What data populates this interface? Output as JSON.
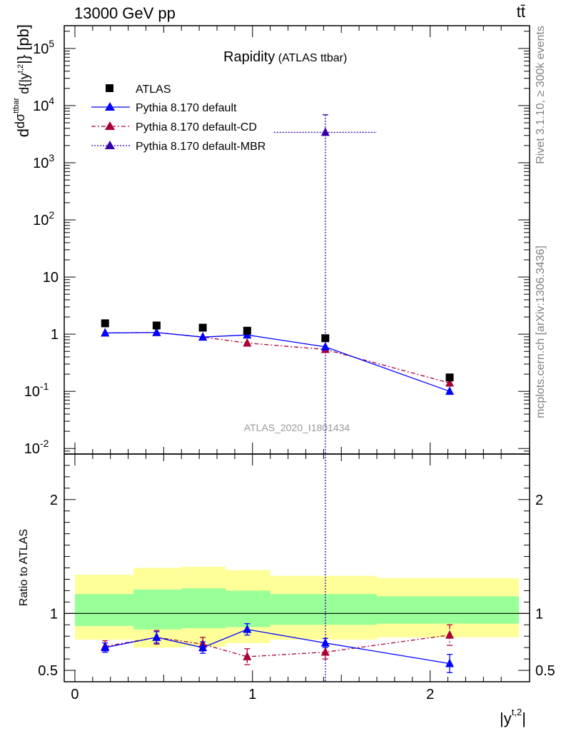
{
  "header": {
    "energy": "13000 GeV pp",
    "process": "tt̄"
  },
  "side": {
    "rivet": "Rivet 3.1.10, ≥ 300k events",
    "mcplots": "mcplots.cern.ch [arXiv:1306.3436]"
  },
  "watermark": "ATLAS_2020_I1801434",
  "colors": {
    "atlas": "#000000",
    "default": "#0000ff",
    "cd": "#aa0033",
    "mbr": "#3300aa",
    "band_outer": "#ffff99",
    "band_inner": "#99ff99"
  },
  "chart_data": [
    {
      "type": "scatter",
      "panel": "main",
      "title": "Rapidity",
      "subtitle": "(ATLAS ttbar)",
      "ylabel": "dσ^ttbar / d{|y^t,2|} [pb]",
      "yscale": "log",
      "ylim": [
        0.008,
        250000
      ],
      "xlim": [
        -0.06,
        2.56
      ],
      "ytick_labels": [
        "10^-2",
        "10^-1",
        "1",
        "10",
        "10^2",
        "10^3",
        "10^4",
        "10^5"
      ],
      "legend": [
        "ATLAS",
        "Pythia 8.170 default",
        "Pythia 8.170 default-CD",
        "Pythia 8.170 default-MBR"
      ],
      "series": [
        {
          "name": "ATLAS",
          "marker": "square",
          "x": [
            0.17,
            0.46,
            0.72,
            0.97,
            1.41,
            2.11
          ],
          "y": [
            1.55,
            1.42,
            1.3,
            1.15,
            0.85,
            0.175
          ]
        },
        {
          "name": "Pythia 8.170 default",
          "marker": "triangle",
          "line": "solid",
          "x": [
            0.17,
            0.46,
            0.72,
            0.97,
            1.41,
            2.11
          ],
          "y": [
            1.05,
            1.07,
            0.89,
            0.97,
            0.6,
            0.1
          ]
        },
        {
          "name": "Pythia 8.170 default-CD",
          "marker": "triangle",
          "line": "dashdot",
          "x": [
            0.17,
            0.46,
            0.72,
            0.97,
            1.41,
            2.11
          ],
          "y": [
            1.05,
            1.07,
            0.89,
            0.7,
            0.54,
            0.14
          ]
        },
        {
          "name": "Pythia 8.170 default-MBR",
          "marker": "triangle",
          "line": "dotted",
          "x": [
            1.41
          ],
          "y": [
            3400
          ],
          "xerr": [
            [
              1.12,
              1.7
            ]
          ],
          "yerr": [
            [
              0.005,
              6900
            ]
          ]
        }
      ]
    },
    {
      "type": "line",
      "panel": "ratio",
      "ylabel": "Ratio to ATLAS",
      "xlabel": "|y^t,2|",
      "ylim": [
        0.4,
        2.4
      ],
      "xlim": [
        -0.06,
        2.56
      ],
      "xtick_labels": [
        "0",
        "1",
        "2"
      ],
      "ytick_labels": [
        "0.5",
        "1",
        "2"
      ],
      "bands": {
        "edges": [
          0.0,
          0.33,
          0.6,
          0.85,
          1.1,
          1.7,
          2.5
        ],
        "outer_low": [
          0.77,
          0.7,
          0.71,
          0.74,
          0.77,
          0.79
        ],
        "outer_high": [
          1.34,
          1.4,
          1.41,
          1.38,
          1.33,
          1.31
        ],
        "inner_low": [
          0.89,
          0.86,
          0.87,
          0.88,
          0.9,
          0.91
        ],
        "inner_high": [
          1.17,
          1.21,
          1.22,
          1.2,
          1.17,
          1.15
        ]
      },
      "series": [
        {
          "name": "Pythia 8.170 default",
          "x": [
            0.17,
            0.46,
            0.72,
            0.97,
            1.41,
            2.11
          ],
          "y": [
            0.7,
            0.79,
            0.7,
            0.86,
            0.74,
            0.56
          ],
          "err": [
            0.04,
            0.05,
            0.05,
            0.05,
            0.04,
            0.08
          ]
        },
        {
          "name": "Pythia 8.170 default-CD",
          "x": [
            0.17,
            0.46,
            0.72,
            0.97,
            1.41,
            2.11
          ],
          "y": [
            0.71,
            0.79,
            0.73,
            0.62,
            0.66,
            0.81
          ],
          "err": [
            0.05,
            0.06,
            0.06,
            0.07,
            0.06,
            0.09
          ]
        }
      ]
    }
  ]
}
